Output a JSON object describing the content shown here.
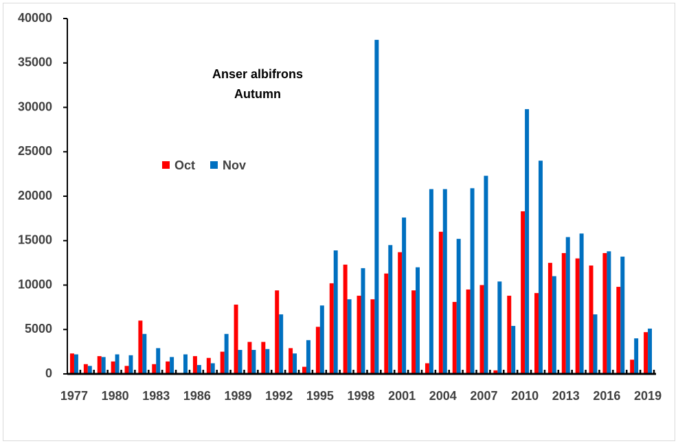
{
  "chart_data": {
    "type": "bar",
    "title": "Anser albifrons",
    "subtitle": "Autumn",
    "x": [
      1977,
      1978,
      1979,
      1980,
      1981,
      1982,
      1983,
      1984,
      1985,
      1986,
      1987,
      1988,
      1989,
      1990,
      1991,
      1992,
      1993,
      1994,
      1995,
      1996,
      1997,
      1998,
      1999,
      2000,
      2001,
      2002,
      2003,
      2004,
      2005,
      2006,
      2007,
      2008,
      2009,
      2010,
      2011,
      2012,
      2013,
      2014,
      2015,
      2016,
      2017,
      2018,
      2019
    ],
    "series": [
      {
        "name": "Oct",
        "color": "#ff0000",
        "values": [
          2300,
          1100,
          2000,
          1400,
          900,
          6000,
          1100,
          1400,
          0,
          2000,
          1800,
          2500,
          7800,
          3600,
          3600,
          9400,
          2900,
          800,
          5300,
          10200,
          12300,
          8800,
          8400,
          11300,
          13700,
          9400,
          1200,
          16000,
          8100,
          9500,
          10000,
          400,
          8800,
          18300,
          9100,
          12500,
          13600,
          13000,
          12200,
          13600,
          9800,
          1600,
          4700
        ]
      },
      {
        "name": "Nov",
        "color": "#0070c0",
        "values": [
          2200,
          900,
          1900,
          2200,
          2100,
          4500,
          2900,
          1900,
          2200,
          1000,
          1200,
          4500,
          2700,
          2700,
          2800,
          6700,
          2300,
          3800,
          7700,
          13900,
          8400,
          11900,
          37600,
          14500,
          17600,
          12000,
          20800,
          20800,
          15200,
          20900,
          22300,
          10400,
          5400,
          29800,
          24000,
          11000,
          15400,
          15800,
          6700,
          13800,
          13200,
          4000,
          5100
        ]
      }
    ],
    "xlim": [
      1976.5,
      2019.5
    ],
    "xticks": [
      1977,
      1980,
      1983,
      1986,
      1989,
      1992,
      1995,
      1998,
      2001,
      2004,
      2007,
      2010,
      2013,
      2016,
      2019
    ],
    "ylim": [
      0,
      40000
    ],
    "yticks": [
      0,
      5000,
      10000,
      15000,
      20000,
      25000,
      30000,
      35000,
      40000
    ]
  }
}
